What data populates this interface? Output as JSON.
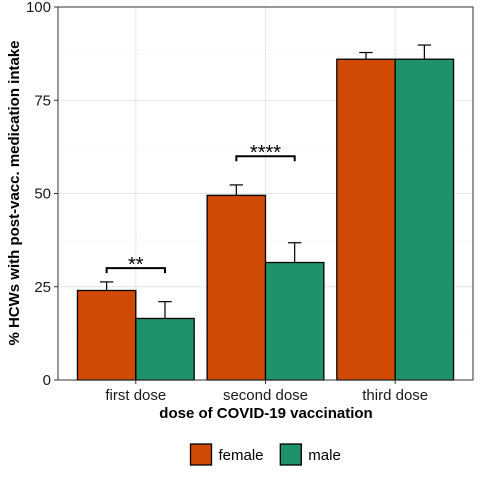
{
  "chart_data": {
    "type": "bar",
    "xlabel": "dose of COVID-19 vaccination",
    "ylabel": "% HCWs with post-vacc. medication intake",
    "ylim": [
      0,
      100
    ],
    "yticks": [
      0,
      25,
      50,
      75,
      100
    ],
    "grid": true,
    "legend_position": "bottom",
    "categories": [
      "first dose",
      "second dose",
      "third dose"
    ],
    "series": [
      {
        "name": "female",
        "color": "#D04A06",
        "values": [
          24,
          49.5,
          86
        ],
        "error_upper": [
          26.3,
          52.3,
          87.8
        ]
      },
      {
        "name": "male",
        "color": "#1E9268",
        "values": [
          16.5,
          31.5,
          86
        ],
        "error_upper": [
          21,
          36.8,
          89.8
        ]
      }
    ],
    "significance": [
      {
        "category": "first dose",
        "label": "**",
        "y": 30
      },
      {
        "category": "second dose",
        "label": "****",
        "y": 60
      }
    ]
  }
}
